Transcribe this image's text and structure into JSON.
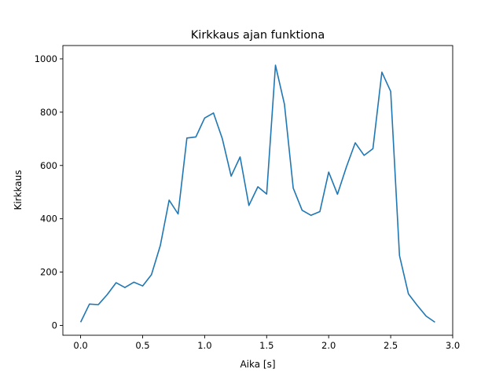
{
  "chart_data": {
    "type": "line",
    "title": "Kirkkaus ajan funktiona",
    "xlabel": "Aika [s]",
    "ylabel": "Kirkkaus",
    "xlim": [
      -0.143,
      3.0
    ],
    "ylim": [
      -37,
      1050
    ],
    "xticks": [
      0.0,
      0.5,
      1.0,
      1.5,
      2.0,
      2.5,
      3.0
    ],
    "xtick_labels": [
      "0.0",
      "0.5",
      "1.0",
      "1.5",
      "2.0",
      "2.5",
      "3.0"
    ],
    "yticks": [
      0,
      200,
      400,
      600,
      800,
      1000
    ],
    "ytick_labels": [
      "0",
      "200",
      "400",
      "600",
      "800",
      "1000"
    ],
    "grid": false,
    "series": [
      {
        "name": "Kirkkaus",
        "color": "#1f77b4",
        "x": [
          0.0,
          0.071,
          0.143,
          0.214,
          0.286,
          0.357,
          0.429,
          0.5,
          0.571,
          0.643,
          0.714,
          0.786,
          0.857,
          0.929,
          1.0,
          1.071,
          1.143,
          1.214,
          1.286,
          1.357,
          1.429,
          1.5,
          1.571,
          1.643,
          1.714,
          1.786,
          1.857,
          1.929,
          2.0,
          2.071,
          2.143,
          2.214,
          2.286,
          2.357,
          2.429,
          2.5,
          2.571,
          2.643,
          2.714,
          2.786,
          2.857
        ],
        "y": [
          12,
          80,
          78,
          115,
          160,
          142,
          162,
          148,
          190,
          300,
          470,
          418,
          703,
          707,
          778,
          797,
          700,
          560,
          632,
          450,
          520,
          493,
          976,
          830,
          515,
          432,
          413,
          427,
          575,
          492,
          595,
          685,
          638,
          663,
          950,
          878,
          262,
          118,
          75,
          35,
          12
        ]
      }
    ]
  }
}
